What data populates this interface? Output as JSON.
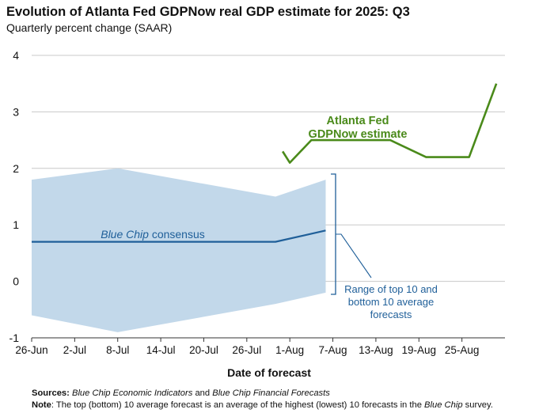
{
  "header": {
    "title": "Evolution of Atlanta Fed GDPNow real GDP estimate for 2025: Q3",
    "subtitle": "Quarterly percent change (SAAR)"
  },
  "chart_data": {
    "type": "line",
    "title": "Evolution of Atlanta Fed GDPNow real GDP estimate for 2025: Q3",
    "subtitle": "Quarterly percent change (SAAR)",
    "xlabel": "Date of forecast",
    "ylabel": "",
    "x_domain_days": [
      0,
      66
    ],
    "ylim": [
      -1,
      4
    ],
    "y_ticks": [
      4,
      3,
      2,
      1,
      0,
      -1
    ],
    "x_ticks": [
      {
        "day": 0,
        "label": "26-Jun"
      },
      {
        "day": 6,
        "label": "2-Jul"
      },
      {
        "day": 12,
        "label": "8-Jul"
      },
      {
        "day": 18,
        "label": "14-Jul"
      },
      {
        "day": 24,
        "label": "20-Jul"
      },
      {
        "day": 30,
        "label": "26-Jul"
      },
      {
        "day": 36,
        "label": "1-Aug"
      },
      {
        "day": 42,
        "label": "7-Aug"
      },
      {
        "day": 48,
        "label": "13-Aug"
      },
      {
        "day": 54,
        "label": "19-Aug"
      },
      {
        "day": 60,
        "label": "25-Aug"
      }
    ],
    "grid": true,
    "series": [
      {
        "name": "GDPNow",
        "color": "#4a8a1a",
        "points": [
          [
            35,
            2.3
          ],
          [
            36,
            2.1
          ],
          [
            39,
            2.5
          ],
          [
            43,
            2.5
          ],
          [
            50,
            2.5
          ],
          [
            55,
            2.2
          ],
          [
            61,
            2.2
          ],
          [
            64.8,
            3.5
          ]
        ]
      },
      {
        "name": "Blue Chip consensus",
        "color": "#1f5f99",
        "points": [
          [
            0,
            0.7
          ],
          [
            34,
            0.7
          ],
          [
            41,
            0.9
          ]
        ]
      }
    ],
    "band": {
      "name": "Range of top 10 and bottom 10 average forecasts",
      "color": "#c2d8ea",
      "upper": [
        [
          0,
          1.8
        ],
        [
          12,
          2.0
        ],
        [
          34,
          1.5
        ],
        [
          41,
          1.8
        ]
      ],
      "lower": [
        [
          0,
          -0.6
        ],
        [
          12,
          -0.9
        ],
        [
          34,
          -0.4
        ],
        [
          41,
          -0.2
        ]
      ]
    },
    "annotations": {
      "gdpnow_line1": "Atlanta Fed",
      "gdpnow_line2": "GDPNow estimate",
      "bluechip_italic": "Blue Chip",
      "bluechip_rest": " consensus",
      "range_line1": "Range of top 10 and",
      "range_line2": "bottom 10 average",
      "range_line3": "forecasts"
    }
  },
  "footer": {
    "sources_label": "Sources:",
    "sources_part1": "Blue Chip Economic Indicators",
    "sources_part2": " and ",
    "sources_part3": "Blue Chip Financial Forecasts",
    "note_label": "Note",
    "note_part1": ": The top (bottom) 10 average forecast is an average of the highest (lowest) 10 forecasts in the ",
    "note_part2": "Blue Chip",
    "note_part3": " survey."
  }
}
